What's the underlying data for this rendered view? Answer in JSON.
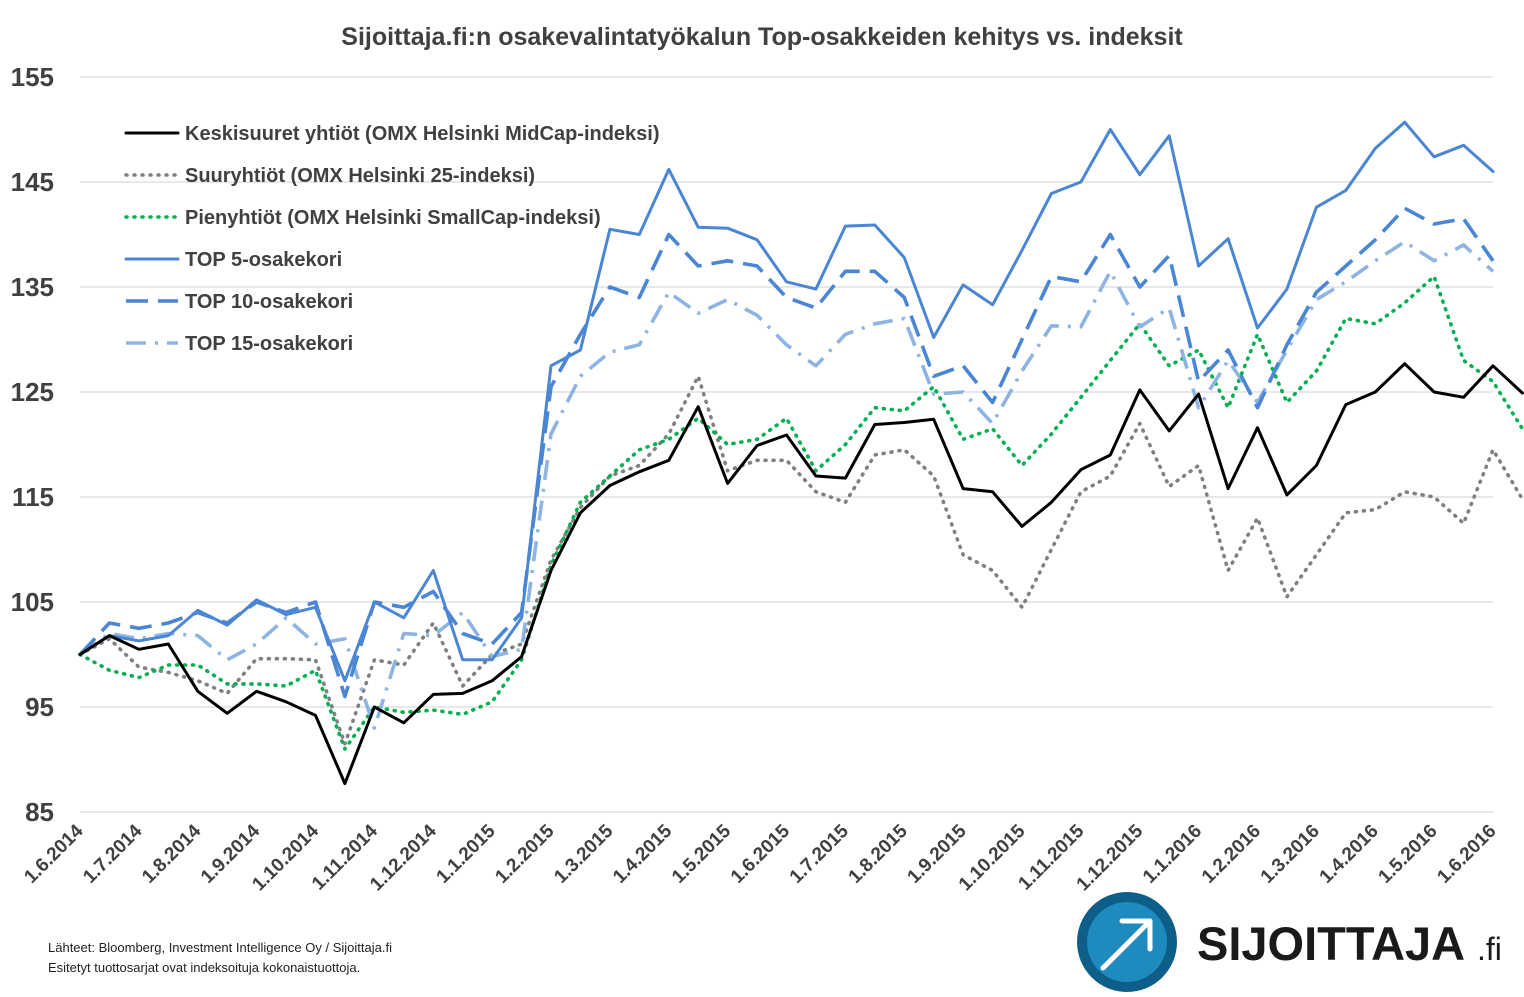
{
  "chart_data": {
    "type": "line",
    "title": "Sijoittaja.fi:n osakevalintatyökalun Top-osakkeiden kehitys vs. indeksit",
    "xlabel": "",
    "ylabel": "",
    "ylim": [
      85,
      155
    ],
    "yticks": [
      85,
      95,
      105,
      115,
      125,
      135,
      145,
      155
    ],
    "grid": true,
    "legend_position": "top-left",
    "x_tick_labels": [
      "1.6.2014",
      "1.7.2014",
      "1.8.2014",
      "1.9.2014",
      "1.10.2014",
      "1.11.2014",
      "1.12.2014",
      "1.1.2015",
      "1.2.2015",
      "1.3.2015",
      "1.4.2015",
      "1.5.2015",
      "1.6.2015",
      "1.7.2015",
      "1.8.2015",
      "1.9.2015",
      "1.10.2015",
      "1.11.2015",
      "1.12.2015",
      "1.1.2016",
      "1.2.2016",
      "1.3.2016",
      "1.4.2016",
      "1.5.2016",
      "1.6.2016"
    ],
    "series": [
      {
        "name": "Keskisuuret yhtiöt (OMX Helsinki MidCap-indeksi)",
        "color": "#000000",
        "style": "solid",
        "values": [
          100,
          101.8,
          100.5,
          101,
          96.5,
          94.4,
          96.5,
          95.5,
          94.2,
          87.7,
          95,
          93.5,
          96.2,
          96.3,
          97.5,
          99.8,
          108,
          113.5,
          116.1,
          117.4,
          118.5,
          123.6,
          116.3,
          119.9,
          120.9,
          117,
          116.8,
          121.9,
          122.1,
          122.4,
          115.8,
          115.5,
          112.2,
          114.5,
          117.6,
          119,
          125.2,
          121.3,
          124.8,
          115.8,
          121.6,
          115.2,
          118,
          123.8,
          125,
          127.7,
          125,
          124.5,
          127.5,
          124.9
        ]
      },
      {
        "name": "Suuryhtiöt (OMX Helsinki 25-indeksi)",
        "color": "#808080",
        "style": "dotted",
        "values": [
          100,
          101.5,
          98.8,
          98.3,
          97.5,
          96.3,
          99.6,
          99.6,
          99.5,
          91.5,
          99.5,
          99,
          103,
          97,
          100,
          101,
          109,
          114,
          117,
          118,
          121,
          126.5,
          117.5,
          118.5,
          118.5,
          115.5,
          114.5,
          119,
          119.5,
          117,
          109.5,
          108,
          104.5,
          110,
          115.5,
          117,
          122,
          116,
          118,
          108,
          113,
          105.5,
          109.5,
          113.5,
          113.8,
          115.5,
          115,
          112.5,
          119.5,
          114.8
        ]
      },
      {
        "name": "Pienyhtiöt (OMX Helsinki SmallCap-indeksi)",
        "color": "#00b050",
        "style": "dotted",
        "values": [
          100,
          98.5,
          97.8,
          99,
          99,
          97.2,
          97.2,
          97,
          98.5,
          91,
          95,
          94.5,
          94.7,
          94.3,
          95.5,
          99.5,
          108.5,
          114.5,
          117,
          119.5,
          120.5,
          122.5,
          120,
          120.5,
          122.5,
          117.5,
          120,
          123.5,
          123.2,
          125.5,
          120.5,
          121.5,
          118,
          121,
          124.5,
          128,
          131.5,
          127.5,
          129,
          123.5,
          130.5,
          124,
          127,
          132,
          131.5,
          133.5,
          136,
          128,
          126,
          121.5
        ]
      },
      {
        "name": "TOP 5-osakekori",
        "color": "#4a86d4",
        "style": "solid",
        "values": [
          100,
          101.8,
          101.3,
          101.8,
          104.2,
          102.8,
          105.2,
          103.8,
          104.5,
          97.5,
          105,
          103.5,
          108,
          99.5,
          99.5,
          103.5,
          127.5,
          129,
          140.5,
          140,
          146.2,
          140.7,
          140.6,
          139.5,
          135.5,
          134.8,
          140.8,
          140.9,
          137.8,
          130.2,
          135.2,
          133.3,
          138.5,
          143.9,
          145,
          150,
          145.7,
          149.4,
          137,
          139.6,
          131.1,
          134.8,
          142.6,
          144.2,
          148.2,
          150.7,
          147.4,
          148.5,
          146
        ]
      },
      {
        "name": "TOP 10-osakekori",
        "color": "#4a86d4",
        "style": "dashed",
        "values": [
          100,
          103,
          102.5,
          103,
          104,
          103,
          105,
          104,
          105,
          96,
          105,
          104.5,
          106,
          102,
          101,
          104,
          125.5,
          130.5,
          135,
          134,
          140,
          137,
          137.5,
          137,
          134,
          133,
          136.5,
          136.5,
          134,
          126.5,
          127.5,
          124,
          130,
          136,
          135.5,
          140,
          135,
          138,
          126,
          129,
          123.5,
          129.5,
          134.5,
          137,
          139.5,
          142.5,
          141,
          141.5,
          137.5
        ]
      },
      {
        "name": "TOP 15-osakekori",
        "color": "#8db4e2",
        "style": "dashdot",
        "values": [
          100,
          102,
          101.5,
          102,
          101.8,
          99.5,
          101,
          103.5,
          101,
          101.5,
          93,
          102,
          101.8,
          104,
          99.8,
          100.5,
          121,
          126.5,
          128.8,
          129.5,
          134.5,
          132.5,
          133.8,
          132.3,
          129.5,
          127.5,
          130.5,
          131.5,
          132,
          124.8,
          125,
          122,
          127,
          131.3,
          131.2,
          136.5,
          131.2,
          133,
          123.5,
          128,
          124,
          129,
          133.8,
          135.5,
          137.5,
          139.3,
          137.5,
          139,
          136.5
        ]
      }
    ]
  },
  "source_lines": [
    "Lähteet: Bloomberg, Investment Intelligence Oy / Sijoittaja.fi",
    "Esitetyt tuottosarjat ovat indeksoituja kokonaistuottoja."
  ],
  "logo": {
    "word": "SIJOITTAJA",
    "suffix": ".fi",
    "colors": {
      "circle_outer": "#0d5f8a",
      "circle_inner": "#1d8bbd",
      "arrow": "#ffffff"
    },
    "icon": "arrow-up-right-icon"
  },
  "colors": {
    "grid": "#d9d9d9",
    "text": "#404040",
    "background": "#ffffff"
  }
}
